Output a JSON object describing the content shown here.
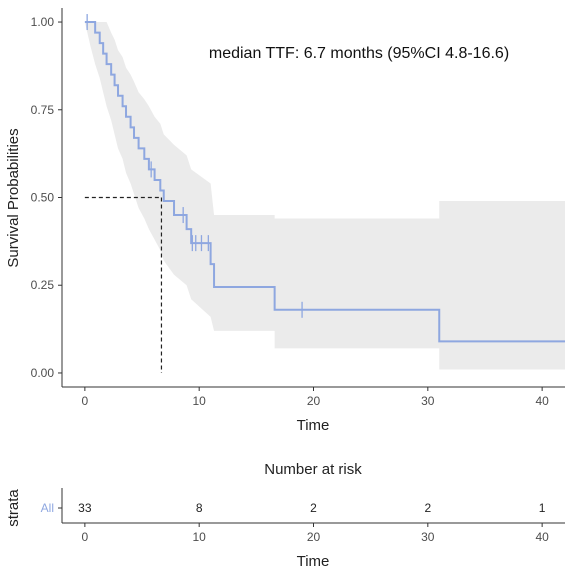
{
  "chart_data": [
    {
      "type": "line",
      "subtype": "kaplan-meier",
      "annotation": "median TTF: 6.7 months (95%CI 4.8-16.6)",
      "xlabel": "Time",
      "ylabel": "Survival Probabilities",
      "xlim": [
        -2,
        42
      ],
      "ylim": [
        -0.04,
        1.04
      ],
      "x_ticks": [
        0,
        10,
        20,
        30,
        40
      ],
      "y_ticks": [
        0.0,
        0.25,
        0.5,
        0.75,
        1.0
      ],
      "y_tick_labels": [
        "0.00",
        "0.25",
        "0.50",
        "0.75",
        "1.00"
      ],
      "grid": false,
      "line_color": "#8ea7e0",
      "ci_color": "#ebebeb",
      "series": [
        {
          "name": "All",
          "steps": [
            [
              0,
              1.0
            ],
            [
              0.5,
              1.0
            ],
            [
              0.9,
              0.97
            ],
            [
              1.3,
              0.94
            ],
            [
              1.6,
              0.91
            ],
            [
              1.9,
              0.88
            ],
            [
              2.3,
              0.85
            ],
            [
              2.6,
              0.82
            ],
            [
              2.9,
              0.79
            ],
            [
              3.3,
              0.76
            ],
            [
              3.6,
              0.73
            ],
            [
              4.0,
              0.7
            ],
            [
              4.3,
              0.67
            ],
            [
              4.7,
              0.64
            ],
            [
              5.2,
              0.61
            ],
            [
              5.6,
              0.58
            ],
            [
              6.1,
              0.55
            ],
            [
              6.6,
              0.52
            ],
            [
              6.9,
              0.49
            ],
            [
              7.8,
              0.45
            ],
            [
              8.9,
              0.41
            ],
            [
              9.3,
              0.37
            ],
            [
              11.0,
              0.31
            ],
            [
              11.3,
              0.245
            ],
            [
              16.6,
              0.245
            ],
            [
              16.6,
              0.18
            ],
            [
              31.0,
              0.18
            ],
            [
              31.0,
              0.09
            ],
            [
              42,
              0.09
            ]
          ],
          "ci_upper": [
            [
              0,
              1.0
            ],
            [
              0.5,
              1.0
            ],
            [
              0.9,
              1.0
            ],
            [
              1.6,
              1.0
            ],
            [
              1.9,
              1.0
            ],
            [
              2.3,
              0.97
            ],
            [
              2.6,
              0.95
            ],
            [
              2.9,
              0.92
            ],
            [
              3.3,
              0.9
            ],
            [
              3.6,
              0.87
            ],
            [
              4.0,
              0.85
            ],
            [
              4.3,
              0.83
            ],
            [
              4.7,
              0.8
            ],
            [
              5.2,
              0.78
            ],
            [
              5.6,
              0.76
            ],
            [
              6.1,
              0.73
            ],
            [
              6.6,
              0.71
            ],
            [
              6.9,
              0.68
            ],
            [
              7.8,
              0.65
            ],
            [
              8.9,
              0.62
            ],
            [
              9.3,
              0.58
            ],
            [
              11.0,
              0.54
            ],
            [
              11.3,
              0.45
            ],
            [
              16.6,
              0.45
            ],
            [
              16.6,
              0.44
            ],
            [
              31.0,
              0.44
            ],
            [
              31.0,
              0.49
            ],
            [
              42,
              0.49
            ]
          ],
          "ci_lower": [
            [
              0,
              1.0
            ],
            [
              0.5,
              0.93
            ],
            [
              0.9,
              0.88
            ],
            [
              1.3,
              0.84
            ],
            [
              1.6,
              0.8
            ],
            [
              1.9,
              0.76
            ],
            [
              2.3,
              0.72
            ],
            [
              2.6,
              0.68
            ],
            [
              2.9,
              0.64
            ],
            [
              3.3,
              0.61
            ],
            [
              3.6,
              0.57
            ],
            [
              4.0,
              0.54
            ],
            [
              4.3,
              0.51
            ],
            [
              4.7,
              0.47
            ],
            [
              5.2,
              0.44
            ],
            [
              5.6,
              0.41
            ],
            [
              6.1,
              0.38
            ],
            [
              6.6,
              0.35
            ],
            [
              6.9,
              0.32
            ],
            [
              7.8,
              0.28
            ],
            [
              8.9,
              0.25
            ],
            [
              9.3,
              0.21
            ],
            [
              11.0,
              0.16
            ],
            [
              11.3,
              0.12
            ],
            [
              16.6,
              0.12
            ],
            [
              16.6,
              0.07
            ],
            [
              31.0,
              0.07
            ],
            [
              31.0,
              0.01
            ],
            [
              42,
              0.01
            ]
          ],
          "censored": [
            [
              0.2,
              1.0
            ],
            [
              5.8,
              0.58
            ],
            [
              8.6,
              0.45
            ],
            [
              9.4,
              0.37
            ],
            [
              9.7,
              0.37
            ],
            [
              10.2,
              0.37
            ],
            [
              10.8,
              0.37
            ],
            [
              19.0,
              0.18
            ]
          ]
        }
      ],
      "median_reference": {
        "x": 6.7,
        "y": 0.5
      }
    },
    {
      "type": "table",
      "title": "Number at risk",
      "ylabel": "strata",
      "xlabel": "Time",
      "x_ticks": [
        0,
        10,
        20,
        30,
        40
      ],
      "rows": [
        {
          "strata": "All",
          "times": [
            0,
            10,
            20,
            30,
            40
          ],
          "values": [
            "33",
            "8",
            "2",
            "2",
            "1"
          ]
        }
      ]
    }
  ]
}
